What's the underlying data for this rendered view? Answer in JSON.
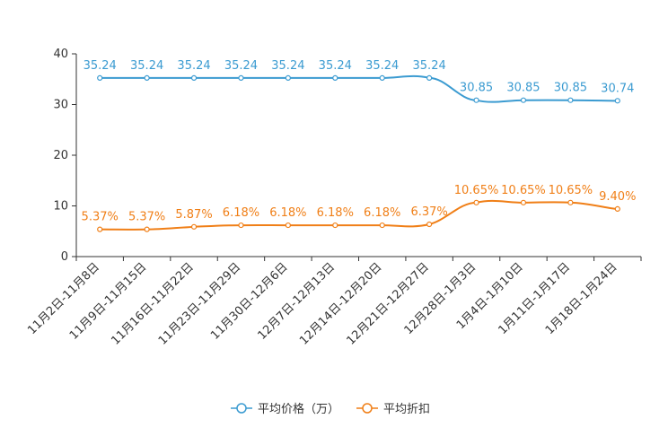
{
  "chart_data": {
    "type": "line",
    "categories": [
      "11月2日-11月8日",
      "11月9日-11月15日",
      "11月16日-11月22日",
      "11月23日-11月29日",
      "11月30日-12月6日",
      "12月7日-12月13日",
      "12月14日-12月20日",
      "12月21日-12月27日",
      "12月28日-1月3日",
      "1月4日-1月10日",
      "1月11日-1月17日",
      "1月18日-1月24日"
    ],
    "ylim": [
      0,
      40
    ],
    "yticks": [
      0,
      10,
      20,
      30,
      40
    ],
    "series": [
      {
        "name": "平均价格（万）",
        "color": "#3b9bd1",
        "values": [
          35.24,
          35.24,
          35.24,
          35.24,
          35.24,
          35.24,
          35.24,
          35.24,
          30.85,
          30.85,
          30.85,
          30.74
        ],
        "labels": [
          "35.24",
          "35.24",
          "35.24",
          "35.24",
          "35.24",
          "35.24",
          "35.24",
          "35.24",
          "30.85",
          "30.85",
          "30.85",
          "30.74"
        ]
      },
      {
        "name": "平均折扣",
        "color": "#f07f17",
        "values": [
          5.37,
          5.37,
          5.87,
          6.18,
          6.18,
          6.18,
          6.18,
          6.37,
          10.65,
          10.65,
          10.65,
          9.4
        ],
        "labels": [
          "5.37%",
          "5.37%",
          "5.87%",
          "6.18%",
          "6.18%",
          "6.18%",
          "6.18%",
          "6.37%",
          "10.65%",
          "10.65%",
          "10.65%",
          "9.40%"
        ]
      }
    ],
    "legend_position": "bottom-center",
    "grid": false
  }
}
